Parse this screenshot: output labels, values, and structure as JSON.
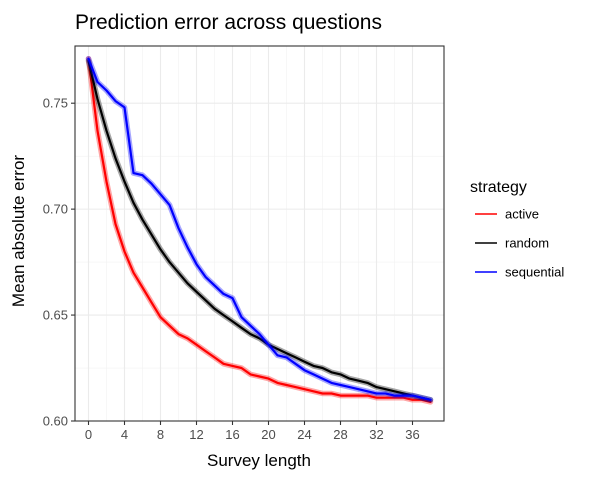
{
  "chart_data": {
    "type": "line",
    "title": "Prediction error across questions",
    "xlabel": "Survey length",
    "ylabel": "Mean absolute error",
    "xlim": [
      -1.5,
      39.5
    ],
    "ylim": [
      0.6,
      0.777
    ],
    "x_ticks": [
      "0",
      "4",
      "8",
      "12",
      "16",
      "20",
      "24",
      "28",
      "32",
      "36"
    ],
    "y_ticks": [
      "0.60",
      "0.65",
      "0.70",
      "0.75"
    ],
    "grid": true,
    "legend": {
      "title": "strategy",
      "position": "right"
    },
    "series": [
      {
        "name": "active",
        "color": "#ff0000",
        "x": [
          0,
          1,
          2,
          3,
          4,
          5,
          6,
          7,
          8,
          9,
          10,
          11,
          12,
          13,
          14,
          15,
          16,
          17,
          18,
          19,
          20,
          21,
          22,
          23,
          24,
          25,
          26,
          27,
          28,
          29,
          30,
          31,
          32,
          33,
          34,
          35,
          36,
          37,
          38
        ],
        "values": [
          0.771,
          0.737,
          0.713,
          0.693,
          0.68,
          0.67,
          0.663,
          0.656,
          0.649,
          0.645,
          0.641,
          0.639,
          0.636,
          0.633,
          0.63,
          0.627,
          0.626,
          0.625,
          0.622,
          0.621,
          0.62,
          0.618,
          0.617,
          0.616,
          0.615,
          0.614,
          0.613,
          0.613,
          0.612,
          0.612,
          0.612,
          0.612,
          0.611,
          0.611,
          0.611,
          0.611,
          0.61,
          0.61,
          0.609
        ]
      },
      {
        "name": "random",
        "color": "#000000",
        "x": [
          0,
          1,
          2,
          3,
          4,
          5,
          6,
          7,
          8,
          9,
          10,
          11,
          12,
          13,
          14,
          15,
          16,
          17,
          18,
          19,
          20,
          21,
          22,
          23,
          24,
          25,
          26,
          27,
          28,
          29,
          30,
          31,
          32,
          33,
          34,
          35,
          36,
          37,
          38
        ],
        "values": [
          0.77,
          0.752,
          0.737,
          0.724,
          0.713,
          0.703,
          0.695,
          0.688,
          0.681,
          0.675,
          0.67,
          0.665,
          0.661,
          0.657,
          0.653,
          0.65,
          0.647,
          0.644,
          0.641,
          0.639,
          0.636,
          0.634,
          0.632,
          0.63,
          0.628,
          0.626,
          0.625,
          0.623,
          0.622,
          0.62,
          0.619,
          0.618,
          0.616,
          0.615,
          0.614,
          0.613,
          0.612,
          0.611,
          0.61
        ]
      },
      {
        "name": "sequential",
        "color": "#0000ff",
        "x": [
          0,
          1,
          2,
          3,
          4,
          5,
          6,
          7,
          8,
          9,
          10,
          11,
          12,
          13,
          14,
          15,
          16,
          17,
          18,
          19,
          20,
          21,
          22,
          23,
          24,
          25,
          26,
          27,
          28,
          29,
          30,
          31,
          32,
          33,
          34,
          35,
          36,
          37,
          38
        ],
        "values": [
          0.771,
          0.76,
          0.756,
          0.751,
          0.748,
          0.717,
          0.716,
          0.712,
          0.707,
          0.702,
          0.691,
          0.682,
          0.674,
          0.668,
          0.664,
          0.66,
          0.658,
          0.649,
          0.645,
          0.641,
          0.636,
          0.631,
          0.63,
          0.627,
          0.624,
          0.622,
          0.62,
          0.618,
          0.617,
          0.616,
          0.615,
          0.614,
          0.613,
          0.613,
          0.612,
          0.612,
          0.612,
          0.611,
          0.61
        ]
      }
    ]
  }
}
